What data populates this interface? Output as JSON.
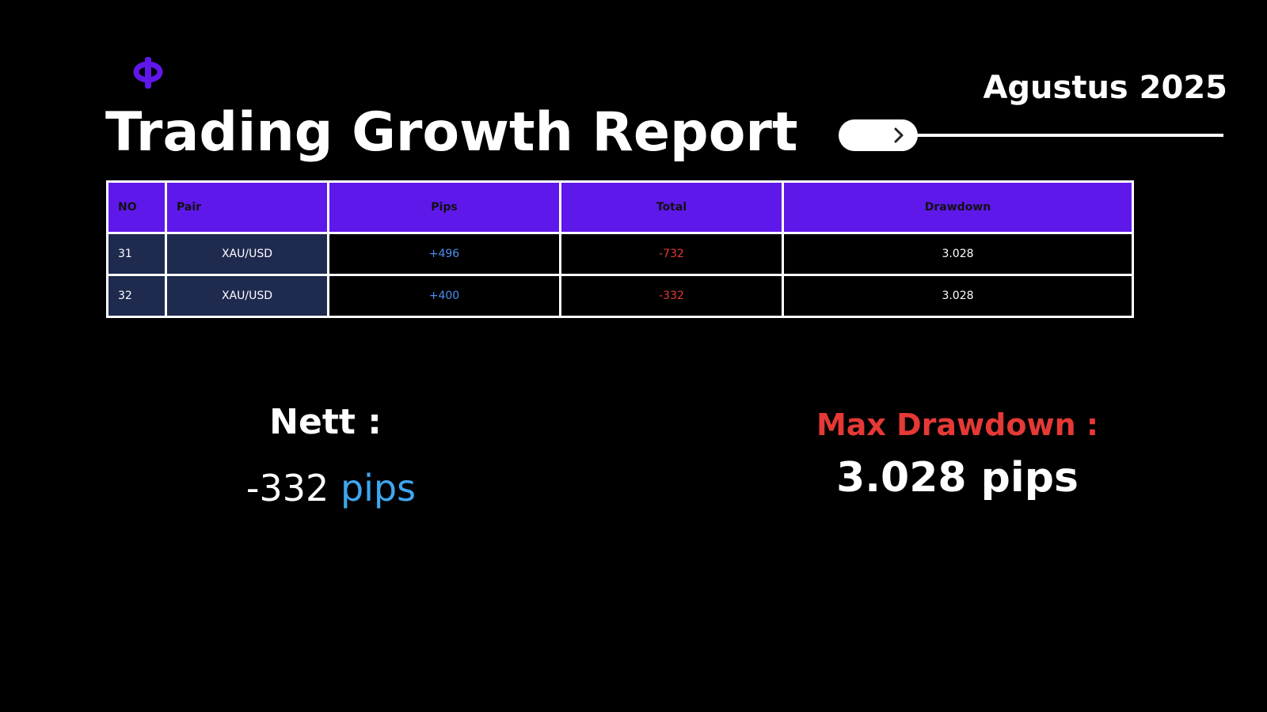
{
  "header": {
    "title": "Trading Growth Report",
    "date": "Agustus 2025"
  },
  "table": {
    "columns": [
      "NO",
      "Pair",
      "Pips",
      "Total",
      "Drawdown"
    ],
    "rows": [
      [
        "31",
        "XAU/USD",
        "+496",
        "-732",
        "3.028"
      ],
      [
        "32",
        "XAU/USD",
        "+400",
        "-332",
        "3.028"
      ]
    ]
  },
  "summary": {
    "nett_label": "Nett :",
    "nett_value": "-332",
    "nett_unit": "pips",
    "drawdown_label": "Max Drawdown :",
    "drawdown_value": "3.028 pips"
  }
}
